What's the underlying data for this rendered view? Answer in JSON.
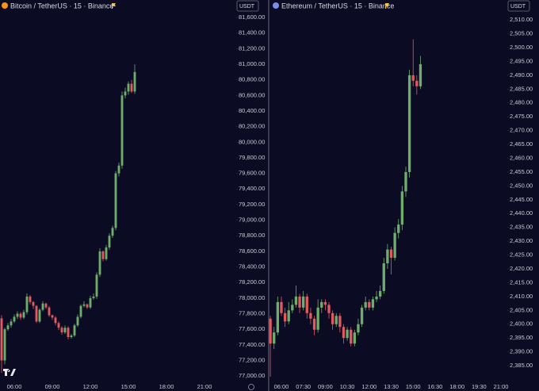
{
  "chart_data": [
    {
      "type": "candlestick",
      "title": "Bitcoin / TetherUS · 15 · Binance",
      "currency": "USDT",
      "up_color": "#6fae6a",
      "down_color": "#e05a5f",
      "xlim": [
        4.875,
        23.5
      ],
      "xticks": [
        {
          "value": 6,
          "label": "06:00"
        },
        {
          "value": 9,
          "label": "09:00"
        },
        {
          "value": 12,
          "label": "12:00"
        },
        {
          "value": 15,
          "label": "15:00"
        },
        {
          "value": 18,
          "label": "18:00"
        },
        {
          "value": 21,
          "label": "21:00"
        }
      ],
      "ylim": [
        76920,
        81824
      ],
      "yticks": [
        {
          "value": 77000,
          "label": "77,000.00"
        },
        {
          "value": 77200,
          "label": "77,200.00"
        },
        {
          "value": 77400,
          "label": "77,400.00"
        },
        {
          "value": 77600,
          "label": "77,600.00"
        },
        {
          "value": 77800,
          "label": "77,800.00"
        },
        {
          "value": 78000,
          "label": "78,000.00"
        },
        {
          "value": 78200,
          "label": "78,200.00"
        },
        {
          "value": 78400,
          "label": "78,400.00"
        },
        {
          "value": 78600,
          "label": "78,600.00"
        },
        {
          "value": 78800,
          "label": "78,800.00"
        },
        {
          "value": 79000,
          "label": "79,000.00"
        },
        {
          "value": 79200,
          "label": "79,200.00"
        },
        {
          "value": 79400,
          "label": "79,400.00"
        },
        {
          "value": 79600,
          "label": "79,600.00"
        },
        {
          "value": 79800,
          "label": "79,800.00"
        },
        {
          "value": 80000,
          "label": "80,000.00"
        },
        {
          "value": 80200,
          "label": "80,200.00"
        },
        {
          "value": 80400,
          "label": "80,400.00"
        },
        {
          "value": 80600,
          "label": "80,600.00"
        },
        {
          "value": 80800,
          "label": "80,800.00"
        },
        {
          "value": 81000,
          "label": "81,000.00"
        },
        {
          "value": 81200,
          "label": "81,200.00"
        },
        {
          "value": 81400,
          "label": "81,400.00"
        },
        {
          "value": 81600,
          "label": "81,600.00"
        }
      ],
      "x": [
        5,
        5.25,
        5.5,
        5.75,
        6,
        6.25,
        6.5,
        6.75,
        7,
        7.25,
        7.5,
        7.75,
        8,
        8.25,
        8.5,
        8.75,
        9,
        9.25,
        9.5,
        9.75,
        10,
        10.25,
        10.5,
        10.75,
        11,
        11.25,
        11.5,
        11.75,
        12,
        12.25,
        12.5,
        12.75,
        13,
        13.25,
        13.5,
        13.75,
        14,
        14.25,
        14.5,
        14.75,
        15,
        15.25,
        15.5
      ],
      "open": [
        77740,
        77200,
        77600,
        77650,
        77700,
        77760,
        77800,
        77750,
        77820,
        78020,
        77950,
        77900,
        77700,
        77850,
        77930,
        77880,
        77780,
        77750,
        77680,
        77620,
        77560,
        77620,
        77500,
        77520,
        77650,
        77760,
        77900,
        77920,
        77880,
        78000,
        78020,
        78300,
        78600,
        78500,
        78650,
        78800,
        78900,
        79600,
        79700,
        80600,
        80650,
        80750,
        80650
      ],
      "high": [
        77780,
        77620,
        77680,
        77730,
        77790,
        77830,
        77820,
        77850,
        78060,
        78040,
        77960,
        77910,
        77870,
        77960,
        77940,
        77900,
        77790,
        77770,
        77700,
        77640,
        77650,
        77640,
        77540,
        77670,
        77790,
        77920,
        77960,
        77930,
        78030,
        78060,
        78330,
        78640,
        78610,
        78680,
        78830,
        78930,
        79630,
        79740,
        80650,
        80700,
        80780,
        80800,
        81000
      ],
      "low": [
        77040,
        77150,
        77580,
        77620,
        77680,
        77730,
        77720,
        77730,
        77790,
        77920,
        77860,
        77680,
        77680,
        77830,
        77860,
        77760,
        77720,
        77650,
        77590,
        77530,
        77540,
        77470,
        77480,
        77500,
        77630,
        77740,
        77880,
        77860,
        77860,
        77980,
        77990,
        78270,
        78470,
        78480,
        78620,
        78770,
        78870,
        79560,
        79660,
        80560,
        80610,
        80630,
        80620
      ],
      "close": [
        77200,
        77600,
        77650,
        77700,
        77760,
        77800,
        77750,
        77820,
        78020,
        77950,
        77900,
        77700,
        77850,
        77930,
        77880,
        77780,
        77750,
        77680,
        77620,
        77560,
        77620,
        77500,
        77520,
        77650,
        77760,
        77900,
        77920,
        77880,
        78000,
        78020,
        78300,
        78600,
        78500,
        78650,
        78800,
        78900,
        79600,
        79700,
        80600,
        80650,
        80750,
        80650,
        80900
      ]
    },
    {
      "type": "candlestick",
      "title": "Ethereum / TetherUS · 15 · Binance",
      "currency": "USDT",
      "up_color": "#6fae6a",
      "down_color": "#e05a5f",
      "xlim": [
        5.19,
        21.43
      ],
      "xticks": [
        {
          "value": 6,
          "label": "06:00"
        },
        {
          "value": 7.5,
          "label": "07:30"
        },
        {
          "value": 9,
          "label": "09:00"
        },
        {
          "value": 10.5,
          "label": "10:30"
        },
        {
          "value": 12,
          "label": "12:00"
        },
        {
          "value": 13.5,
          "label": "13:30"
        },
        {
          "value": 15,
          "label": "15:00"
        },
        {
          "value": 16.5,
          "label": "16:30"
        },
        {
          "value": 18,
          "label": "18:00"
        },
        {
          "value": 19.5,
          "label": "19:30"
        },
        {
          "value": 21,
          "label": "21:00"
        }
      ],
      "ylim": [
        2379,
        2517.2
      ],
      "yticks": [
        {
          "value": 2385,
          "label": "2,385.00"
        },
        {
          "value": 2390,
          "label": "2,390.00"
        },
        {
          "value": 2395,
          "label": "2,395.00"
        },
        {
          "value": 2400,
          "label": "2,400.00"
        },
        {
          "value": 2405,
          "label": "2,405.00"
        },
        {
          "value": 2410,
          "label": "2,410.00"
        },
        {
          "value": 2415,
          "label": "2,415.00"
        },
        {
          "value": 2420,
          "label": "2,420.00"
        },
        {
          "value": 2425,
          "label": "2,425.00"
        },
        {
          "value": 2430,
          "label": "2,430.00"
        },
        {
          "value": 2435,
          "label": "2,435.00"
        },
        {
          "value": 2440,
          "label": "2,440.00"
        },
        {
          "value": 2445,
          "label": "2,445.00"
        },
        {
          "value": 2450,
          "label": "2,450.00"
        },
        {
          "value": 2455,
          "label": "2,455.00"
        },
        {
          "value": 2460,
          "label": "2,460.00"
        },
        {
          "value": 2465,
          "label": "2,465.00"
        },
        {
          "value": 2470,
          "label": "2,470.00"
        },
        {
          "value": 2475,
          "label": "2,475.00"
        },
        {
          "value": 2480,
          "label": "2,480.00"
        },
        {
          "value": 2485,
          "label": "2,485.00"
        },
        {
          "value": 2490,
          "label": "2,490.00"
        },
        {
          "value": 2495,
          "label": "2,495.00"
        },
        {
          "value": 2500,
          "label": "2,500.00"
        },
        {
          "value": 2505,
          "label": "2,505.00"
        },
        {
          "value": 2510,
          "label": "2,510.00"
        }
      ],
      "x": [
        5.25,
        5.5,
        5.75,
        6,
        6.25,
        6.5,
        6.75,
        7,
        7.25,
        7.5,
        7.75,
        8,
        8.25,
        8.5,
        8.75,
        9,
        9.25,
        9.5,
        9.75,
        10,
        10.25,
        10.5,
        10.75,
        11,
        11.25,
        11.5,
        11.75,
        12,
        12.25,
        12.5,
        12.75,
        13,
        13.25,
        13.5,
        13.75,
        14,
        14.25,
        14.5,
        14.75,
        15,
        15.25,
        15.5
      ],
      "open": [
        2402,
        2393,
        2397,
        2408,
        2404,
        2401,
        2405,
        2407,
        2410,
        2406,
        2410,
        2404,
        2402,
        2398,
        2406,
        2408,
        2407,
        2404,
        2400,
        2403,
        2399,
        2395,
        2398,
        2393,
        2397,
        2400,
        2406,
        2408,
        2406,
        2409,
        2410,
        2412,
        2422,
        2427,
        2424,
        2433,
        2436,
        2448,
        2455,
        2490,
        2488,
        2486
      ],
      "high": [
        2403,
        2399,
        2410,
        2410,
        2406,
        2408,
        2409,
        2414,
        2411,
        2412,
        2411,
        2406,
        2403,
        2409,
        2409,
        2409,
        2408,
        2405,
        2404,
        2404,
        2400,
        2399,
        2399,
        2398,
        2402,
        2407,
        2410,
        2409,
        2410,
        2412,
        2414,
        2424,
        2429,
        2428,
        2435,
        2438,
        2450,
        2457,
        2492,
        2503,
        2490,
        2497
      ],
      "low": [
        2381,
        2391,
        2396,
        2403,
        2399,
        2400,
        2404,
        2406,
        2404,
        2405,
        2402,
        2400,
        2396,
        2397,
        2404,
        2405,
        2402,
        2398,
        2399,
        2397,
        2393,
        2394,
        2392,
        2392,
        2396,
        2399,
        2405,
        2405,
        2405,
        2408,
        2409,
        2411,
        2420,
        2418,
        2423,
        2431,
        2434,
        2446,
        2453,
        2486,
        2483,
        2485
      ],
      "close": [
        2393,
        2397,
        2408,
        2404,
        2401,
        2405,
        2407,
        2410,
        2406,
        2410,
        2404,
        2402,
        2398,
        2406,
        2408,
        2407,
        2404,
        2400,
        2403,
        2399,
        2395,
        2398,
        2393,
        2397,
        2400,
        2406,
        2408,
        2406,
        2409,
        2410,
        2412,
        2422,
        2427,
        2424,
        2433,
        2436,
        2448,
        2455,
        2490,
        2488,
        2486,
        2494
      ]
    }
  ]
}
